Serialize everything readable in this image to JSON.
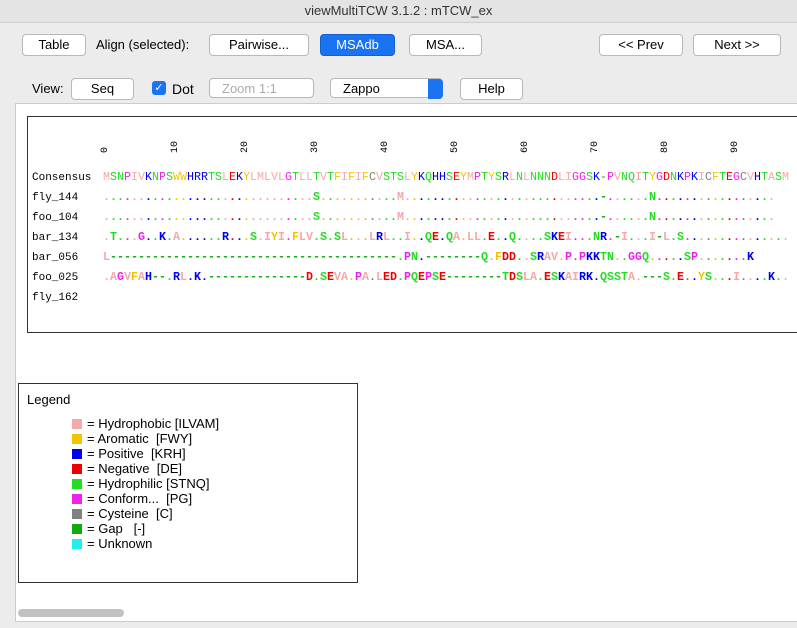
{
  "window": {
    "title": "viewMultiTCW 3.1.2 : mTCW_ex"
  },
  "toolbar": {
    "table": "Table",
    "align_label": "Align (selected):",
    "pairwise": "Pairwise...",
    "msadb": "MSAdb",
    "msa": "MSA...",
    "prev": "<< Prev",
    "next": "Next >>"
  },
  "view": {
    "label": "View:",
    "seq": "Seq",
    "dot": "Dot",
    "zoom": "Zoom 1:1",
    "scheme": "Zappo",
    "help": "Help"
  },
  "ruler": [
    0,
    10,
    20,
    30,
    40,
    50,
    60,
    70,
    80,
    90
  ],
  "rows": [
    {
      "name": "Consensus",
      "seq": "MSNPIVKNPSWWHRRTSLEKYLMLVLGTLLTVTFIFIFCVSTSLYKQHHSEYMPTYSRLNLNNNDLIGGSK-PVNQITYGDNKPKICFTEGCVHTASM"
    },
    {
      "name": "fly_144",
      "seq": "..............................S...........M............................-......N................."
    },
    {
      "name": "foo_104",
      "seq": "..............................S...........M............................-......N................."
    },
    {
      "name": "bar_134",
      "seq": ".T...G..K.A......R...S.IYI.FLV.S.SL...LRL..I..QE.QA.LL.E..Q....SKEI...NR.-I...I-L.S..............."
    },
    {
      "name": "bar_056",
      "seq": "L-----------------------------------------.PN.--------Q.FDD..SRAV.P.PKKTN..GGQ.....SP.......K"
    },
    {
      "name": "foo_025",
      "seq": ".AGVFAH--.RL.K.--------------D.SEVA.PA.LED.PQEPSE--------TDSLA.ESKAIRK.QSSTA.---S.E..YS...I....K.."
    },
    {
      "name": "fly_162",
      "seq": ""
    }
  ],
  "legend": {
    "title": "Legend",
    "items": [
      {
        "label": "= Hydrophobic [ILVAM]",
        "color": "#f7a8a8"
      },
      {
        "label": "= Aromatic  [FWY]",
        "color": "#f5c400"
      },
      {
        "label": "= Positive  [KRH]",
        "color": "#0000ee"
      },
      {
        "label": "= Negative  [DE]",
        "color": "#ee0000"
      },
      {
        "label": "= Hydrophilic [STNQ]",
        "color": "#22dd22"
      },
      {
        "label": "= Conform...  [PG]",
        "color": "#ee22ee"
      },
      {
        "label": "= Cysteine  [C]",
        "color": "#808080"
      },
      {
        "label": "= Gap   [-]",
        "color": "#11aa11"
      },
      {
        "label": "= Unknown",
        "color": "#22eeee"
      }
    ]
  }
}
